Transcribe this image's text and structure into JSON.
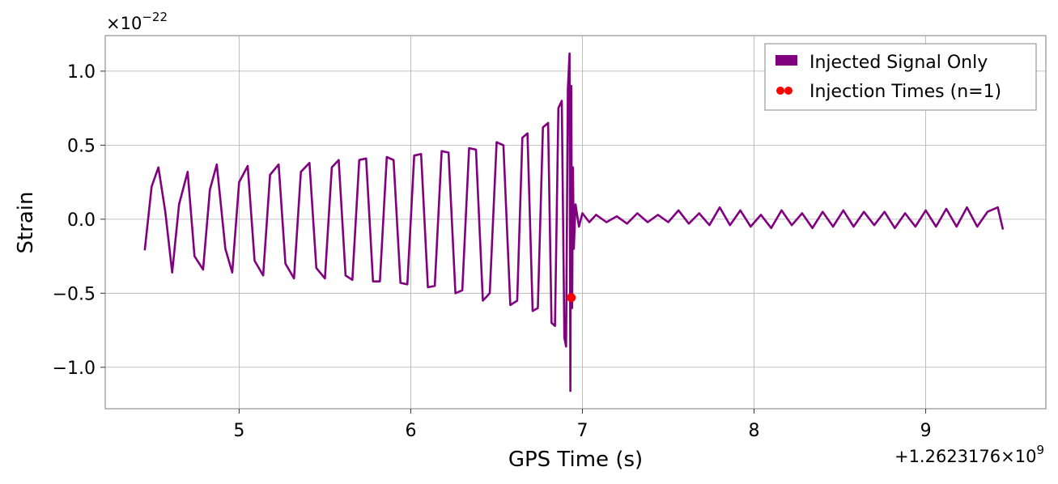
{
  "chart_data": {
    "type": "line",
    "xlabel": "GPS Time (s)",
    "ylabel": "Strain",
    "x_offset_label": "+1.2623176×10",
    "x_offset_exp": "9",
    "y_scale_label": "×10",
    "y_scale_exp": "−22",
    "xlim": [
      4.22,
      9.7
    ],
    "ylim": [
      -1.28,
      1.24
    ],
    "x_ticks": [
      5,
      6,
      7,
      8,
      9
    ],
    "x_tick_labels": [
      "5",
      "6",
      "7",
      "8",
      "9"
    ],
    "y_ticks": [
      -1.0,
      -0.5,
      0.0,
      0.5,
      1.0
    ],
    "y_tick_labels": [
      "−1.0",
      "−0.5",
      "0.0",
      "0.5",
      "1.0"
    ],
    "grid": true,
    "legend_position": "top-right",
    "series": [
      {
        "name": "Injected Signal Only",
        "color": "#800080",
        "kind": "line",
        "points": [
          [
            4.45,
            -0.21
          ],
          [
            4.49,
            0.22
          ],
          [
            4.53,
            0.35
          ],
          [
            4.57,
            0.05
          ],
          [
            4.61,
            -0.36
          ],
          [
            4.65,
            0.1
          ],
          [
            4.7,
            0.32
          ],
          [
            4.74,
            -0.25
          ],
          [
            4.79,
            -0.34
          ],
          [
            4.83,
            0.2
          ],
          [
            4.87,
            0.37
          ],
          [
            4.92,
            -0.2
          ],
          [
            4.96,
            -0.36
          ],
          [
            5.0,
            0.25
          ],
          [
            5.05,
            0.36
          ],
          [
            5.09,
            -0.28
          ],
          [
            5.14,
            -0.38
          ],
          [
            5.18,
            0.3
          ],
          [
            5.23,
            0.37
          ],
          [
            5.27,
            -0.3
          ],
          [
            5.32,
            -0.4
          ],
          [
            5.36,
            0.32
          ],
          [
            5.41,
            0.38
          ],
          [
            5.45,
            -0.33
          ],
          [
            5.5,
            -0.4
          ],
          [
            5.54,
            0.35
          ],
          [
            5.58,
            0.4
          ],
          [
            5.62,
            -0.38
          ],
          [
            5.66,
            -0.41
          ],
          [
            5.7,
            0.4
          ],
          [
            5.74,
            0.41
          ],
          [
            5.78,
            -0.42
          ],
          [
            5.82,
            -0.42
          ],
          [
            5.86,
            0.42
          ],
          [
            5.9,
            0.4
          ],
          [
            5.94,
            -0.43
          ],
          [
            5.98,
            -0.44
          ],
          [
            6.02,
            0.43
          ],
          [
            6.06,
            0.44
          ],
          [
            6.1,
            -0.46
          ],
          [
            6.14,
            -0.45
          ],
          [
            6.18,
            0.46
          ],
          [
            6.22,
            0.45
          ],
          [
            6.26,
            -0.5
          ],
          [
            6.3,
            -0.48
          ],
          [
            6.34,
            0.48
          ],
          [
            6.38,
            0.47
          ],
          [
            6.42,
            -0.55
          ],
          [
            6.46,
            -0.5
          ],
          [
            6.5,
            0.52
          ],
          [
            6.54,
            0.5
          ],
          [
            6.58,
            -0.58
          ],
          [
            6.62,
            -0.55
          ],
          [
            6.65,
            0.55
          ],
          [
            6.68,
            0.58
          ],
          [
            6.71,
            -0.62
          ],
          [
            6.74,
            -0.6
          ],
          [
            6.77,
            0.62
          ],
          [
            6.8,
            0.65
          ],
          [
            6.82,
            -0.7
          ],
          [
            6.84,
            -0.72
          ],
          [
            6.86,
            0.75
          ],
          [
            6.88,
            0.8
          ],
          [
            6.895,
            -0.8
          ],
          [
            6.905,
            -0.86
          ],
          [
            6.915,
            0.88
          ],
          [
            6.925,
            1.12
          ],
          [
            6.93,
            -1.16
          ],
          [
            6.935,
            0.9
          ],
          [
            6.94,
            -0.6
          ],
          [
            6.945,
            0.35
          ],
          [
            6.95,
            -0.2
          ],
          [
            6.96,
            0.1
          ],
          [
            6.98,
            -0.05
          ],
          [
            7.0,
            0.04
          ],
          [
            7.04,
            -0.02
          ],
          [
            7.08,
            0.03
          ],
          [
            7.14,
            -0.02
          ],
          [
            7.2,
            0.02
          ],
          [
            7.26,
            -0.03
          ],
          [
            7.32,
            0.04
          ],
          [
            7.38,
            -0.02
          ],
          [
            7.44,
            0.03
          ],
          [
            7.5,
            -0.02
          ],
          [
            7.56,
            0.06
          ],
          [
            7.62,
            -0.03
          ],
          [
            7.68,
            0.04
          ],
          [
            7.74,
            -0.04
          ],
          [
            7.8,
            0.08
          ],
          [
            7.86,
            -0.04
          ],
          [
            7.92,
            0.06
          ],
          [
            7.98,
            -0.05
          ],
          [
            8.04,
            0.03
          ],
          [
            8.1,
            -0.06
          ],
          [
            8.16,
            0.06
          ],
          [
            8.22,
            -0.04
          ],
          [
            8.28,
            0.04
          ],
          [
            8.34,
            -0.06
          ],
          [
            8.4,
            0.05
          ],
          [
            8.46,
            -0.05
          ],
          [
            8.52,
            0.06
          ],
          [
            8.58,
            -0.05
          ],
          [
            8.64,
            0.05
          ],
          [
            8.7,
            -0.04
          ],
          [
            8.76,
            0.05
          ],
          [
            8.82,
            -0.06
          ],
          [
            8.88,
            0.04
          ],
          [
            8.94,
            -0.05
          ],
          [
            9.0,
            0.06
          ],
          [
            9.06,
            -0.05
          ],
          [
            9.12,
            0.07
          ],
          [
            9.18,
            -0.05
          ],
          [
            9.24,
            0.08
          ],
          [
            9.3,
            -0.05
          ],
          [
            9.36,
            0.05
          ],
          [
            9.42,
            0.08
          ],
          [
            9.45,
            -0.07
          ]
        ]
      },
      {
        "name": "Injection Times (n=1)",
        "color": "#ff0000",
        "kind": "scatter",
        "points": [
          [
            6.935,
            -0.53
          ]
        ]
      }
    ]
  }
}
